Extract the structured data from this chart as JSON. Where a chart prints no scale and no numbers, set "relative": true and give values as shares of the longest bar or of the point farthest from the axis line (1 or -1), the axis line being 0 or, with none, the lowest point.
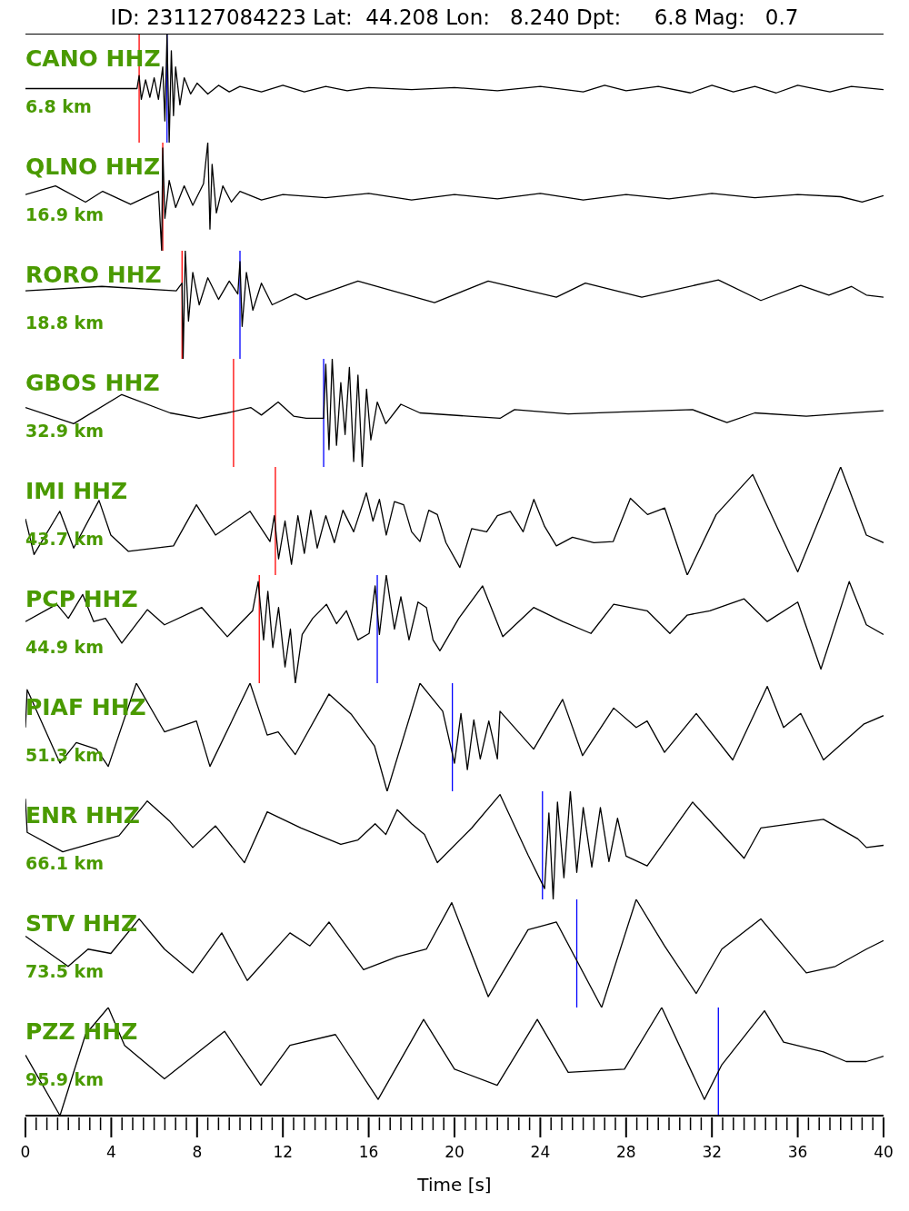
{
  "chart_data": [
    {
      "type": "line",
      "title": "ID: 231127084223 Lat:  44.208 Lon:   8.240 Dpt:     6.8 Mag:   0.7",
      "annotations": [
        "CANO HHZ",
        "6.8 km"
      ],
      "relative": true,
      "xlim": [
        0,
        40
      ],
      "tick_labels": false,
      "color": "#000000",
      "x": [
        0,
        4,
        5.2,
        5.3,
        5.4,
        5.6,
        5.8,
        6.0,
        6.2,
        6.4,
        6.5,
        6.6,
        6.7,
        6.8,
        6.9,
        7.0,
        7.2,
        7.4,
        7.7,
        8.0,
        8.5,
        9,
        9.5,
        10,
        11,
        12,
        13,
        14,
        15,
        16,
        18,
        20,
        22,
        24,
        26,
        27,
        28,
        29.5,
        31,
        32,
        33,
        34,
        35,
        36,
        37.5,
        38.5,
        40
      ],
      "values": [
        0.5,
        0.5,
        0.5,
        0.62,
        0.4,
        0.58,
        0.42,
        0.6,
        0.4,
        0.7,
        0.2,
        1.0,
        0,
        0.85,
        0.25,
        0.7,
        0.35,
        0.6,
        0.45,
        0.55,
        0.45,
        0.53,
        0.47,
        0.52,
        0.47,
        0.53,
        0.47,
        0.52,
        0.48,
        0.51,
        0.49,
        0.51,
        0.48,
        0.52,
        0.47,
        0.53,
        0.48,
        0.52,
        0.46,
        0.53,
        0.47,
        0.52,
        0.46,
        0.53,
        0.47,
        0.52,
        0.49
      ],
      "ref_lines": [
        {
          "axis": "x",
          "value": 5.3,
          "color": "#ff0000"
        },
        {
          "axis": "x",
          "value": 6.6,
          "color": "#0000ff"
        }
      ]
    },
    {
      "type": "line",
      "annotations": [
        "QLNO HHZ",
        "16.9 km"
      ],
      "relative": true,
      "xlim": [
        0,
        40
      ],
      "tick_labels": false,
      "color": "#000000",
      "x": [
        0,
        1.4,
        2.8,
        3.6,
        4.9,
        6.2,
        6.35,
        6.4,
        6.5,
        6.7,
        7,
        7.4,
        7.8,
        8.3,
        8.5,
        8.6,
        8.7,
        8.9,
        9.2,
        9.6,
        10,
        11,
        12,
        14,
        16,
        18,
        20,
        22,
        24,
        26,
        28,
        30,
        32,
        34,
        36,
        38,
        39,
        40
      ],
      "values": [
        0.52,
        0.6,
        0.45,
        0.55,
        0.43,
        0.55,
        0,
        0.95,
        0.3,
        0.65,
        0.4,
        0.6,
        0.42,
        0.62,
        1.0,
        0.2,
        0.8,
        0.35,
        0.6,
        0.45,
        0.55,
        0.47,
        0.52,
        0.49,
        0.53,
        0.47,
        0.52,
        0.48,
        0.53,
        0.47,
        0.52,
        0.48,
        0.53,
        0.49,
        0.52,
        0.5,
        0.45,
        0.51
      ],
      "ref_lines": [
        {
          "axis": "x",
          "value": 6.4,
          "color": "#ff0000"
        }
      ]
    },
    {
      "type": "line",
      "annotations": [
        "RORO HHZ",
        "18.8 km"
      ],
      "relative": true,
      "xlim": [
        0,
        40
      ],
      "tick_labels": false,
      "color": "#000000",
      "x": [
        0,
        3.56,
        7.03,
        7.3,
        7.35,
        7.45,
        7.6,
        7.8,
        8.1,
        8.5,
        9,
        9.5,
        9.9,
        10.0,
        10.1,
        10.3,
        10.6,
        11,
        11.5,
        12.58,
        13.09,
        15.5,
        19.07,
        21.57,
        24.75,
        26.1,
        28.73,
        32.3,
        34.28,
        36.14,
        37.45,
        38.5,
        39.2,
        40
      ],
      "values": [
        0.63,
        0.67,
        0.63,
        0.7,
        0,
        1,
        0.35,
        0.8,
        0.5,
        0.75,
        0.55,
        0.72,
        0.6,
        0.9,
        0.3,
        0.8,
        0.45,
        0.7,
        0.5,
        0.6,
        0.55,
        0.72,
        0.52,
        0.72,
        0.57,
        0.7,
        0.57,
        0.73,
        0.54,
        0.68,
        0.59,
        0.67,
        0.59,
        0.57
      ],
      "ref_lines": [
        {
          "axis": "x",
          "value": 7.3,
          "color": "#ff0000"
        },
        {
          "axis": "x",
          "value": 10.0,
          "color": "#0000ff"
        }
      ]
    },
    {
      "type": "line",
      "annotations": [
        "GBOS HHZ",
        "32.9 km"
      ],
      "relative": true,
      "xlim": [
        0,
        40
      ],
      "tick_labels": false,
      "color": "#000000",
      "x": [
        0,
        2.25,
        4.49,
        6.74,
        8.09,
        9.41,
        10.5,
        11,
        11.78,
        12.5,
        13.09,
        13.9,
        14.0,
        14.15,
        14.3,
        14.5,
        14.7,
        14.9,
        15.1,
        15.3,
        15.5,
        15.7,
        15.9,
        16.1,
        16.4,
        16.8,
        17.5,
        18.39,
        22.12,
        22.8,
        25.3,
        27.9,
        31.1,
        32.7,
        34.0,
        36.4,
        39.2,
        40
      ],
      "values": [
        0.55,
        0.4,
        0.67,
        0.5,
        0.45,
        0.5,
        0.55,
        0.48,
        0.6,
        0.47,
        0.45,
        0.45,
        0.95,
        0.16,
        1,
        0.2,
        0.78,
        0.3,
        0.92,
        0.05,
        0.85,
        0,
        0.72,
        0.25,
        0.6,
        0.4,
        0.58,
        0.5,
        0.45,
        0.53,
        0.49,
        0.51,
        0.53,
        0.41,
        0.5,
        0.47,
        0.51,
        0.52
      ],
      "ref_lines": [
        {
          "axis": "x",
          "value": 9.7,
          "color": "#ff0000"
        },
        {
          "axis": "x",
          "value": 13.9,
          "color": "#0000ff"
        }
      ]
    },
    {
      "type": "line",
      "annotations": [
        "IMI HHZ",
        "43.7 km"
      ],
      "relative": true,
      "xlim": [
        0,
        40
      ],
      "tick_labels": false,
      "color": "#000000",
      "x": [
        0,
        0.4,
        1.6,
        2.25,
        3.43,
        3.98,
        4.79,
        6.9,
        7.97,
        8.86,
        10.47,
        11.4,
        11.6,
        11.8,
        12.1,
        12.4,
        12.7,
        13,
        13.3,
        13.6,
        14,
        14.4,
        14.8,
        15.3,
        15.89,
        16.2,
        16.5,
        16.82,
        17.2,
        17.63,
        18,
        18.39,
        18.8,
        19.2,
        19.6,
        20.25,
        20.8,
        21.5,
        22,
        22.6,
        23.2,
        23.7,
        24.2,
        24.75,
        25.5,
        26.5,
        27.4,
        28.2,
        29,
        29.8,
        30.85,
        32.2,
        33.9,
        36.0,
        38.0,
        39.2,
        40
      ],
      "values": [
        0.52,
        0.19,
        0.59,
        0.25,
        0.69,
        0.37,
        0.22,
        0.27,
        0.65,
        0.37,
        0.59,
        0.31,
        0.55,
        0.15,
        0.5,
        0.1,
        0.55,
        0.2,
        0.6,
        0.25,
        0.55,
        0.3,
        0.6,
        0.4,
        0.76,
        0.5,
        0.7,
        0.37,
        0.68,
        0.65,
        0.4,
        0.31,
        0.6,
        0.56,
        0.3,
        0.07,
        0.43,
        0.4,
        0.55,
        0.59,
        0.4,
        0.7,
        0.45,
        0.27,
        0.35,
        0.3,
        0.31,
        0.71,
        0.56,
        0.62,
        0,
        0.56,
        0.93,
        0.03,
        1,
        0.37,
        0.3
      ],
      "ref_lines": [
        {
          "axis": "x",
          "value": 11.65,
          "color": "#ff0000"
        }
      ]
    },
    {
      "type": "line",
      "annotations": [
        "PCP HHZ",
        "44.9 km"
      ],
      "relative": true,
      "xlim": [
        0,
        40
      ],
      "tick_labels": false,
      "color": "#000000",
      "x": [
        0,
        1.46,
        2.0,
        2.67,
        3.18,
        3.73,
        4.49,
        5.68,
        6.48,
        8.22,
        9.41,
        10.59,
        10.85,
        11.1,
        11.3,
        11.53,
        11.8,
        12.1,
        12.35,
        12.58,
        12.9,
        13.39,
        14.03,
        14.5,
        14.96,
        15.5,
        16.02,
        16.3,
        16.5,
        16.82,
        17.2,
        17.5,
        17.88,
        18.3,
        18.69,
        19.0,
        19.32,
        20.2,
        21.31,
        22.25,
        23.69,
        25.04,
        26.36,
        27.42,
        28.98,
        30.04,
        30.85,
        31.9,
        33.5,
        34.58,
        36,
        37.08,
        38.4,
        39.2,
        40
      ],
      "values": [
        0.57,
        0.73,
        0.6,
        0.82,
        0.57,
        0.6,
        0.37,
        0.68,
        0.54,
        0.7,
        0.43,
        0.67,
        0.94,
        0.4,
        0.85,
        0.33,
        0.7,
        0.15,
        0.5,
        0,
        0.45,
        0.6,
        0.73,
        0.55,
        0.67,
        0.4,
        0.46,
        0.9,
        0.45,
        1,
        0.5,
        0.8,
        0.4,
        0.75,
        0.7,
        0.4,
        0.3,
        0.6,
        0.9,
        0.43,
        0.7,
        0.57,
        0.46,
        0.73,
        0.67,
        0.46,
        0.63,
        0.67,
        0.78,
        0.57,
        0.75,
        0.13,
        0.94,
        0.54,
        0.45
      ],
      "ref_lines": [
        {
          "axis": "x",
          "value": 10.9,
          "color": "#ff0000"
        },
        {
          "axis": "x",
          "value": 16.4,
          "color": "#0000ff"
        }
      ]
    },
    {
      "type": "line",
      "annotations": [
        "PIAF HHZ",
        "51.3 km"
      ],
      "relative": true,
      "xlim": [
        0,
        40
      ],
      "tick_labels": false,
      "color": "#000000",
      "x": [
        0,
        0.08,
        1.61,
        2.37,
        3.31,
        3.86,
        5.17,
        6.48,
        7.97,
        8.6,
        10.47,
        11.27,
        11.78,
        12.58,
        14.15,
        15.2,
        16.27,
        16.86,
        18.39,
        19.45,
        20.0,
        20.3,
        20.6,
        20.9,
        21.2,
        21.6,
        22.0,
        22.12,
        23.69,
        25.04,
        25.97,
        27.42,
        28.47,
        28.98,
        29.79,
        31.27,
        32.97,
        34.58,
        35.34,
        36.14,
        37.2,
        39.07,
        40
      ],
      "values": [
        0.59,
        0.94,
        0.26,
        0.45,
        0.39,
        0.23,
        1,
        0.55,
        0.65,
        0.23,
        1,
        0.52,
        0.55,
        0.34,
        0.9,
        0.71,
        0.42,
        0,
        1,
        0.74,
        0.26,
        0.72,
        0.2,
        0.66,
        0.3,
        0.65,
        0.3,
        0.74,
        0.39,
        0.85,
        0.33,
        0.77,
        0.59,
        0.65,
        0.36,
        0.72,
        0.29,
        0.97,
        0.59,
        0.72,
        0.29,
        0.62,
        0.7
      ],
      "ref_lines": [
        {
          "axis": "x",
          "value": 19.9,
          "color": "#0000ff"
        }
      ]
    },
    {
      "type": "line",
      "annotations": [
        "ENR HHZ",
        "66.1 km"
      ],
      "relative": true,
      "xlim": [
        0,
        40
      ],
      "tick_labels": false,
      "color": "#000000",
      "x": [
        0,
        0.08,
        1.74,
        4.36,
        5.68,
        6.74,
        7.8,
        8.86,
        10.21,
        11.27,
        12.84,
        14.7,
        15.5,
        16.3,
        16.8,
        17.33,
        18,
        18.6,
        19.2,
        20.8,
        22.12,
        23.43,
        24.2,
        24.4,
        24.6,
        24.8,
        25.1,
        25.4,
        25.7,
        26,
        26.4,
        26.8,
        27.2,
        27.6,
        28,
        28.98,
        31.1,
        33.5,
        34.28,
        37.2,
        38.8,
        39.2,
        40
      ],
      "values": [
        0.93,
        0.62,
        0.44,
        0.59,
        0.91,
        0.72,
        0.48,
        0.68,
        0.34,
        0.81,
        0.66,
        0.51,
        0.55,
        0.7,
        0.6,
        0.83,
        0.7,
        0.6,
        0.34,
        0.66,
        0.97,
        0.41,
        0.1,
        0.8,
        0,
        0.9,
        0.2,
        1,
        0.25,
        0.85,
        0.3,
        0.85,
        0.35,
        0.75,
        0.4,
        0.31,
        0.9,
        0.38,
        0.66,
        0.74,
        0.56,
        0.48,
        0.5
      ],
      "ref_lines": [
        {
          "axis": "x",
          "value": 24.1,
          "color": "#0000ff"
        }
      ]
    },
    {
      "type": "line",
      "annotations": [
        "STV HHZ",
        "73.5 km"
      ],
      "relative": true,
      "xlim": [
        0,
        40
      ],
      "tick_labels": false,
      "color": "#000000",
      "x": [
        0,
        1.99,
        2.92,
        3.98,
        5.3,
        6.48,
        7.8,
        9.15,
        10.34,
        12.33,
        13.26,
        14.15,
        15.76,
        17.33,
        18.69,
        19.87,
        21.57,
        23.43,
        24.75,
        26.86,
        28.47,
        29.79,
        31.27,
        32.46,
        34.28,
        36.4,
        37.75,
        39.2,
        40
      ],
      "values": [
        0.66,
        0.38,
        0.54,
        0.5,
        0.82,
        0.54,
        0.32,
        0.69,
        0.25,
        0.69,
        0.57,
        0.79,
        0.35,
        0.47,
        0.54,
        0.97,
        0.1,
        0.72,
        0.79,
        0,
        1,
        0.57,
        0.13,
        0.54,
        0.82,
        0.32,
        0.38,
        0.54,
        0.62
      ],
      "ref_lines": [
        {
          "axis": "x",
          "value": 25.7,
          "color": "#0000ff"
        }
      ]
    },
    {
      "type": "line",
      "annotations": [
        "PZZ HHZ",
        "95.9 km"
      ],
      "relative": true,
      "xlim": [
        0,
        40
      ],
      "tick_labels": "x",
      "xlabel": "Time [s]",
      "color": "#000000",
      "x": [
        0,
        1.61,
        2.8,
        3.86,
        4.62,
        6.48,
        9.28,
        10.97,
        12.33,
        14.45,
        16.44,
        18.56,
        20.0,
        21.99,
        23.86,
        25.3,
        27.92,
        29.66,
        31.65,
        32.46,
        34.45,
        35.34,
        37.2,
        38.26,
        39.2,
        40
      ],
      "values": [
        0.56,
        0,
        0.75,
        1,
        0.65,
        0.34,
        0.78,
        0.28,
        0.65,
        0.75,
        0.15,
        0.89,
        0.43,
        0.28,
        0.89,
        0.4,
        0.43,
        1,
        0.15,
        0.47,
        0.97,
        0.68,
        0.59,
        0.5,
        0.5,
        0.55
      ],
      "ref_lines": [
        {
          "axis": "x",
          "value": 32.3,
          "color": "#0000ff"
        }
      ],
      "xticks": [
        0,
        {
          "value": 0.5,
          "label": null
        },
        {
          "value": 1,
          "label": null
        },
        {
          "value": 1.5,
          "label": null
        },
        {
          "value": 2,
          "label": null
        },
        {
          "value": 2.5,
          "label": null
        },
        {
          "value": 3,
          "label": null
        },
        {
          "value": 3.5,
          "label": null
        },
        4,
        {
          "value": 4.5,
          "label": null
        },
        {
          "value": 5,
          "label": null
        },
        {
          "value": 5.5,
          "label": null
        },
        {
          "value": 6,
          "label": null
        },
        {
          "value": 6.5,
          "label": null
        },
        {
          "value": 7,
          "label": null
        },
        {
          "value": 7.5,
          "label": null
        },
        8,
        {
          "value": 8.5,
          "label": null
        },
        {
          "value": 9,
          "label": null
        },
        {
          "value": 9.5,
          "label": null
        },
        {
          "value": 10,
          "label": null
        },
        {
          "value": 10.5,
          "label": null
        },
        {
          "value": 11,
          "label": null
        },
        {
          "value": 11.5,
          "label": null
        },
        12,
        {
          "value": 12.5,
          "label": null
        },
        {
          "value": 13,
          "label": null
        },
        {
          "value": 13.5,
          "label": null
        },
        {
          "value": 14,
          "label": null
        },
        {
          "value": 14.5,
          "label": null
        },
        {
          "value": 15,
          "label": null
        },
        {
          "value": 15.5,
          "label": null
        },
        16,
        {
          "value": 16.5,
          "label": null
        },
        {
          "value": 17,
          "label": null
        },
        {
          "value": 17.5,
          "label": null
        },
        {
          "value": 18,
          "label": null
        },
        {
          "value": 18.5,
          "label": null
        },
        {
          "value": 19,
          "label": null
        },
        {
          "value": 19.5,
          "label": null
        },
        20,
        {
          "value": 20.5,
          "label": null
        },
        {
          "value": 21,
          "label": null
        },
        {
          "value": 21.5,
          "label": null
        },
        {
          "value": 22,
          "label": null
        },
        {
          "value": 22.5,
          "label": null
        },
        {
          "value": 23,
          "label": null
        },
        {
          "value": 23.5,
          "label": null
        },
        24,
        {
          "value": 24.5,
          "label": null
        },
        {
          "value": 25,
          "label": null
        },
        {
          "value": 25.5,
          "label": null
        },
        {
          "value": 26,
          "label": null
        },
        {
          "value": 26.5,
          "label": null
        },
        {
          "value": 27,
          "label": null
        },
        {
          "value": 27.5,
          "label": null
        },
        28,
        {
          "value": 28.5,
          "label": null
        },
        {
          "value": 29,
          "label": null
        },
        {
          "value": 29.5,
          "label": null
        },
        {
          "value": 30,
          "label": null
        },
        {
          "value": 30.5,
          "label": null
        },
        {
          "value": 31,
          "label": null
        },
        {
          "value": 31.5,
          "label": null
        },
        32,
        {
          "value": 32.5,
          "label": null
        },
        {
          "value": 33,
          "label": null
        },
        {
          "value": 33.5,
          "label": null
        },
        {
          "value": 34,
          "label": null
        },
        {
          "value": 34.5,
          "label": null
        },
        {
          "value": 35,
          "label": null
        },
        {
          "value": 35.5,
          "label": null
        },
        36,
        {
          "value": 36.5,
          "label": null
        },
        {
          "value": 37,
          "label": null
        },
        {
          "value": 37.5,
          "label": null
        },
        {
          "value": 38,
          "label": null
        },
        {
          "value": 38.5,
          "label": null
        },
        {
          "value": 39,
          "label": null
        },
        {
          "value": 39.5,
          "label": null
        },
        40
      ]
    }
  ]
}
